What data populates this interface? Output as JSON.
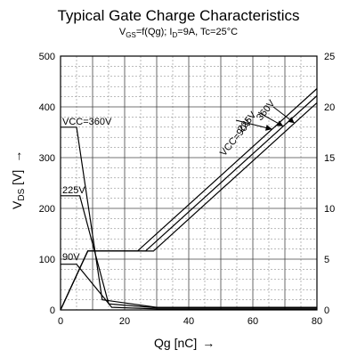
{
  "chart_data": {
    "type": "line",
    "title": "Typical Gate Charge Characteristics",
    "subtitle": {
      "p1": "V",
      "s1": "GS",
      "p2": "=f(Qg); I",
      "s2": "D",
      "p3": "=9A, Tc=25°C"
    },
    "xlabel": "Qg [nC]",
    "xlabel_arrow": "→",
    "ylabel_left": {
      "main": "V",
      "sub": "DS",
      "unit": " [V]",
      "arrow": "→"
    },
    "xlim": [
      0,
      80
    ],
    "ylim_left": [
      0,
      500
    ],
    "ylim_right": [
      0,
      25
    ],
    "x_ticks": [
      "0",
      "20",
      "40",
      "60",
      "80"
    ],
    "y_ticks_left": [
      "0",
      "100",
      "200",
      "300",
      "400",
      "500"
    ],
    "y_ticks_right": [
      "0",
      "5",
      "10",
      "15",
      "20",
      "25"
    ],
    "grid": true,
    "vds_series": [
      {
        "name": "VCC=360V",
        "points": [
          [
            0,
            360
          ],
          [
            5,
            360
          ],
          [
            13,
            20
          ],
          [
            30,
            5
          ],
          [
            80,
            5
          ]
        ]
      },
      {
        "name": "225V",
        "points": [
          [
            0,
            225
          ],
          [
            6,
            225
          ],
          [
            15,
            12
          ],
          [
            30,
            4
          ],
          [
            80,
            4
          ]
        ]
      },
      {
        "name": "90V",
        "points": [
          [
            0,
            90
          ],
          [
            5,
            90
          ],
          [
            16,
            5
          ],
          [
            30,
            2
          ],
          [
            80,
            2
          ]
        ]
      }
    ],
    "vgs_series": [
      {
        "name": "VCC=90V",
        "points": [
          [
            0,
            0
          ],
          [
            8.5,
            5.8
          ],
          [
            24,
            5.8
          ],
          [
            80,
            21.8
          ]
        ]
      },
      {
        "name": "225V",
        "points": [
          [
            0,
            0
          ],
          [
            8.5,
            5.8
          ],
          [
            26.5,
            5.8
          ],
          [
            80,
            21.1
          ]
        ]
      },
      {
        "name": "360V",
        "points": [
          [
            0,
            0
          ],
          [
            8.5,
            5.8
          ],
          [
            29,
            5.8
          ],
          [
            80,
            20.4
          ]
        ]
      }
    ],
    "annotations": {
      "vds_360": "VCC=360V",
      "vds_225": "225V",
      "vds_90": "90V",
      "vgs_90": "VCC=90V",
      "vgs_225": "225V",
      "vgs_360": "360V"
    }
  }
}
